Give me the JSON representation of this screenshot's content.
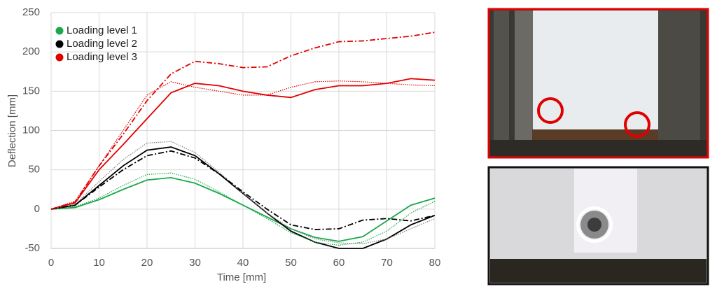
{
  "chart_data": {
    "type": "line",
    "xlabel": "Time [mm]",
    "ylabel": "Deflection [mm]",
    "x": [
      0,
      5,
      10,
      15,
      20,
      25,
      30,
      35,
      40,
      45,
      50,
      55,
      60,
      65,
      70,
      75,
      80
    ],
    "xlim": [
      0,
      80
    ],
    "xticks": [
      0,
      10,
      20,
      30,
      40,
      50,
      60,
      70,
      80
    ],
    "ylim": [
      -50,
      250
    ],
    "yticks": [
      -50,
      0,
      50,
      100,
      150,
      200,
      250
    ],
    "grid": true,
    "legend": "upper left",
    "series": [
      {
        "name": "Loading level 1",
        "color": "#1aa84a",
        "style": "solid",
        "values": [
          0,
          2,
          12,
          25,
          37,
          40,
          33,
          20,
          5,
          -10,
          -25,
          -36,
          -41,
          -35,
          -15,
          5,
          14
        ]
      },
      {
        "name": "Loading level 2",
        "color": "#000000",
        "style": "solid",
        "values": [
          0,
          5,
          30,
          55,
          75,
          79,
          68,
          45,
          20,
          -5,
          -28,
          -42,
          -50,
          -50,
          -38,
          -20,
          -8
        ]
      },
      {
        "name": "Loading level 3",
        "color": "#e00000",
        "style": "solid",
        "values": [
          0,
          8,
          50,
          82,
          115,
          148,
          160,
          157,
          150,
          145,
          142,
          152,
          157,
          157,
          160,
          166,
          164
        ]
      },
      {
        "color": "#1aa84a",
        "style": "dotted",
        "values": [
          0,
          3,
          14,
          30,
          44,
          46,
          38,
          22,
          5,
          -12,
          -30,
          -42,
          -46,
          -42,
          -28,
          -5,
          10
        ]
      },
      {
        "color": "#808080",
        "style": "dotted",
        "values": [
          0,
          6,
          35,
          63,
          84,
          86,
          72,
          47,
          20,
          -5,
          -25,
          -38,
          -43,
          -44,
          -38,
          -25,
          -12
        ]
      },
      {
        "color": "#000000",
        "style": "dashdot",
        "values": [
          0,
          5,
          28,
          50,
          68,
          74,
          65,
          45,
          22,
          0,
          -20,
          -26,
          -25,
          -14,
          -12,
          -15,
          -8
        ]
      },
      {
        "color": "#e00000",
        "style": "dotted",
        "values": [
          0,
          10,
          55,
          100,
          145,
          162,
          155,
          150,
          145,
          145,
          155,
          162,
          163,
          162,
          160,
          158,
          157
        ]
      },
      {
        "color": "#e00000",
        "style": "dashdot",
        "values": [
          0,
          9,
          55,
          95,
          138,
          172,
          188,
          185,
          180,
          181,
          195,
          205,
          213,
          214,
          217,
          220,
          225
        ]
      }
    ]
  }
}
